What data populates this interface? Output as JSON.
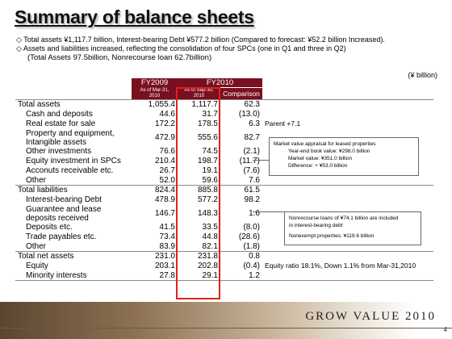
{
  "title": "Summary of balance sheets",
  "bullets": [
    "◇ Total assets ¥1,117.7 billion, Interest-bearing Debt ¥577.2 billion (Compared to forecast: ¥52.2 billion Increased).",
    "◇ Assets and liabilities increased, reflecting the consolidation of four SPCs (one in Q1 and three in Q2)",
    "(Total Assets 97.5billion, Nonrecourse loan 62.7billion)"
  ],
  "unit": "(¥ billion)",
  "table": {
    "fy2009": "FY2009",
    "fy2010": "FY2010",
    "col_a_line1": "As of Mar-31,",
    "col_a_line2": "2010",
    "col_b_line1": "As of Sep-30,",
    "col_b_line2": "2010",
    "comparison": "Comparison",
    "rows": [
      {
        "label": "Total assets",
        "a": "1,055.4",
        "b": "1,117.7",
        "c": "62.3",
        "note": ""
      },
      {
        "label": "Cash and deposits",
        "a": "44.6",
        "b": "31.7",
        "c": "(13.0)",
        "note": ""
      },
      {
        "label": "Real estate for sale",
        "a": "172.2",
        "b": "178.5",
        "c": "6.3",
        "note": "Parent +7.1"
      },
      {
        "label": "Property and equipment,",
        "label2": "Intangible assets",
        "a": "472.9",
        "b": "555.6",
        "c": "82.7",
        "note": ""
      },
      {
        "label": "Other investments",
        "a": "76.6",
        "b": "74.5",
        "c": "(2.1)",
        "note": ""
      },
      {
        "label": "Equity investment in SPCs",
        "a": "210.4",
        "b": "198.7",
        "c": "(11.7)",
        "note": ""
      },
      {
        "label": "Acconuts receivable etc.",
        "a": "26.7",
        "b": "19.1",
        "c": "(7.6)",
        "note": ""
      },
      {
        "label": "Other",
        "a": "52.0",
        "b": "59.6",
        "c": "7.6",
        "note": ""
      },
      {
        "label": "Total liabilities",
        "a": "824.4",
        "b": "885.8",
        "c": "61.5",
        "note": ""
      },
      {
        "label": "Interest-bearing Debt",
        "a": "478.9",
        "b": "577.2",
        "c": "98.2",
        "note": ""
      },
      {
        "label": "Guarantee and lease",
        "label2": "deposits received",
        "a": "146.7",
        "b": "148.3",
        "c": "1.6",
        "note": ""
      },
      {
        "label": "Deposits etc.",
        "a": "41.5",
        "b": "33.5",
        "c": "(8.0)",
        "note": ""
      },
      {
        "label": "Trade payables etc.",
        "a": "73.4",
        "b": "44.8",
        "c": "(28.6)",
        "note": ""
      },
      {
        "label": "Other",
        "a": "83.9",
        "b": "82.1",
        "c": "(1.8)",
        "note": ""
      },
      {
        "label": "Total net assets",
        "a": "231.0",
        "b": "231.8",
        "c": "0.8",
        "note": ""
      },
      {
        "label": "Equity",
        "a": "203.1",
        "b": "202.8",
        "c": "(0.4)",
        "note": "Equity ratio 18.1%, Down 1.1% from Mar-31,2010"
      },
      {
        "label": "Minority interests",
        "a": "27.8",
        "b": "29.1",
        "c": "1.2",
        "note": ""
      }
    ]
  },
  "callout1": {
    "title": "Market value appraisal for leased properties",
    "line1": "Year-end book value: ¥298.0 billion",
    "line2": "Market value: ¥351.0 billion",
    "line3": "Difference: + ¥53.0  billion"
  },
  "callout2": {
    "line1": "Nonrecourse loans of ¥74.1 billion are included",
    "line2": "in interest-bearing debt",
    "line3": "Nonexempt properties: ¥119.6 billion"
  },
  "brand": "GROW VALUE 2010",
  "page": "4",
  "colors": {
    "header_bg": "#7a0f1f",
    "highlight_box": "#e0211b"
  }
}
